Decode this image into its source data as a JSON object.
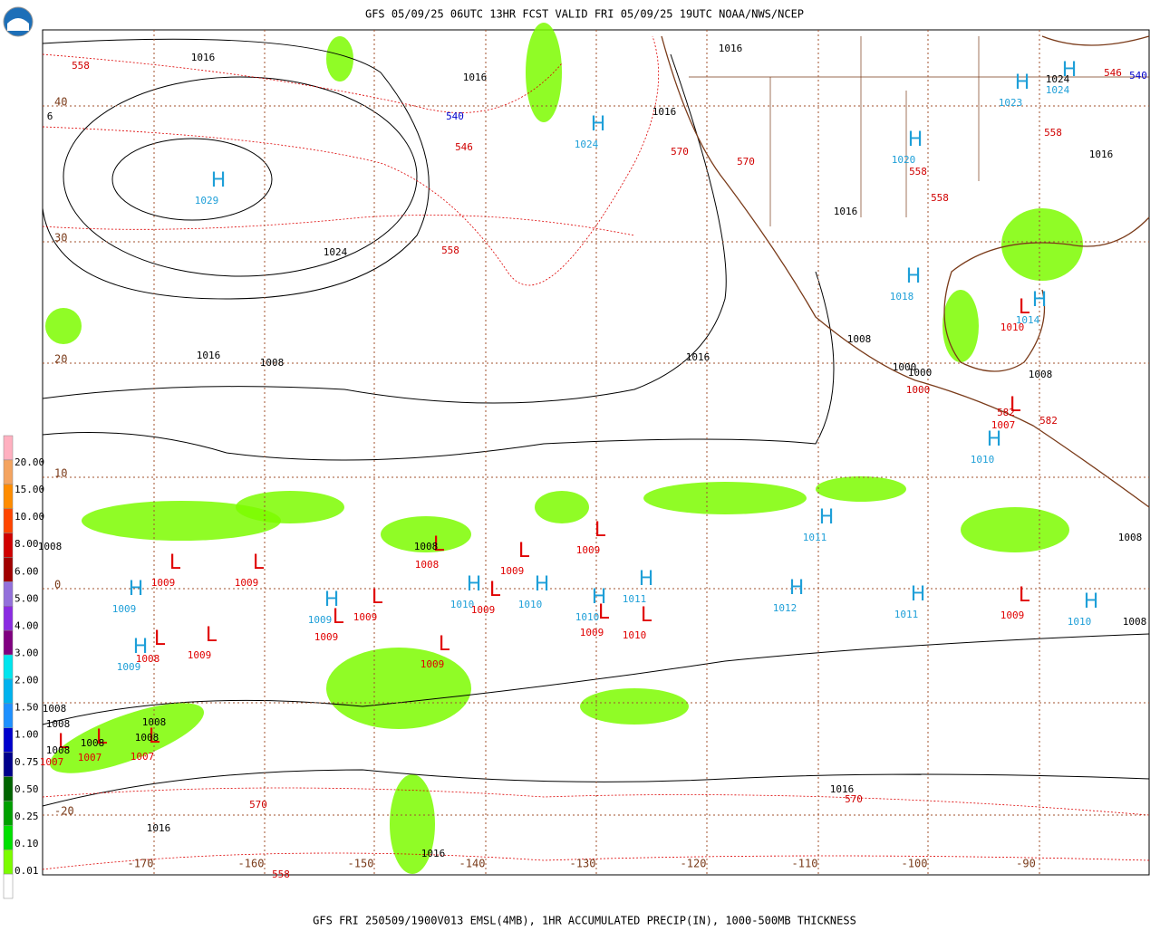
{
  "header": {
    "title": "GFS 05/09/25 06UTC 13HR FCST VALID FRI 05/09/25 19UTC NOAA/NWS/NCEP"
  },
  "footer": "GFS FRI 250509/1900V013 EMSL(4MB), 1HR ACCUMULATED PRECIP(IN), 1000-500MB THICKNESS",
  "legend": {
    "labels": [
      "20.00",
      "15.00",
      "10.00",
      "8.00",
      "6.00",
      "5.00",
      "4.00",
      "3.00",
      "2.00",
      "1.50",
      "1.00",
      "0.75",
      "0.50",
      "0.25",
      "0.10",
      "0.01"
    ]
  },
  "lat_labels": [
    40,
    30,
    20,
    10,
    0,
    -20
  ],
  "lon_labels": [
    -170,
    -160,
    -150,
    -140,
    -130,
    -120,
    -110,
    -100,
    -90
  ],
  "highs": [
    {
      "symbol": "H",
      "pressure": 1029
    },
    {
      "symbol": "H",
      "pressure": 1024
    },
    {
      "symbol": "H",
      "pressure": 1020
    },
    {
      "symbol": "H",
      "pressure": 1023
    },
    {
      "symbol": "H",
      "pressure": 1024
    },
    {
      "symbol": "H",
      "pressure": 1018
    },
    {
      "symbol": "H",
      "pressure": 1014
    },
    {
      "symbol": "H",
      "pressure": 1010
    },
    {
      "symbol": "H",
      "pressure": 1011
    },
    {
      "symbol": "H",
      "pressure": 1009
    },
    {
      "symbol": "H",
      "pressure": 1009
    },
    {
      "symbol": "H",
      "pressure": 1010
    },
    {
      "symbol": "H",
      "pressure": 1010
    },
    {
      "symbol": "H",
      "pressure": 1010
    },
    {
      "symbol": "H",
      "pressure": 1011
    },
    {
      "symbol": "H",
      "pressure": 1012
    },
    {
      "symbol": "H",
      "pressure": 1011
    },
    {
      "symbol": "H",
      "pressure": 1010
    },
    {
      "symbol": "H",
      "pressure": 1009
    }
  ],
  "lows": [
    {
      "symbol": "L",
      "pressure": 1010
    },
    {
      "symbol": "L",
      "pressure": 1007
    },
    {
      "symbol": "L",
      "pressure": 1009
    },
    {
      "symbol": "L",
      "pressure": 1009
    },
    {
      "symbol": "L",
      "pressure": 1008
    },
    {
      "symbol": "L",
      "pressure": 1009
    },
    {
      "symbol": "L",
      "pressure": 1009
    },
    {
      "symbol": "L",
      "pressure": 1009
    },
    {
      "symbol": "L",
      "pressure": 1009
    },
    {
      "symbol": "L",
      "pressure": 1009
    },
    {
      "symbol": "L",
      "pressure": 1009
    },
    {
      "symbol": "L",
      "pressure": 1010
    },
    {
      "symbol": "L",
      "pressure": 1009
    },
    {
      "symbol": "L",
      "pressure": 1008
    },
    {
      "symbol": "L",
      "pressure": 1009
    },
    {
      "symbol": "L",
      "pressure": 1007
    },
    {
      "symbol": "L",
      "pressure": 1007
    },
    {
      "symbol": "L",
      "pressure": 1007
    },
    {
      "symbol": "L",
      "pressure": 1009
    }
  ],
  "isobar_labels": [
    1016,
    1016,
    1016,
    1016,
    1016,
    1024,
    1016,
    1024,
    1016,
    1008,
    1016,
    1008,
    1000,
    1000,
    1008,
    1008,
    1008,
    1008,
    1008,
    1008,
    1008,
    1008,
    1008,
    1008,
    1008,
    1016,
    1016,
    1016,
    6
  ],
  "thickness_labels": [
    558,
    546,
    558,
    570,
    570,
    558,
    558,
    558,
    546,
    1000,
    582,
    582,
    570,
    570,
    558
  ],
  "thickness_labels_blue": [
    540,
    540
  ]
}
